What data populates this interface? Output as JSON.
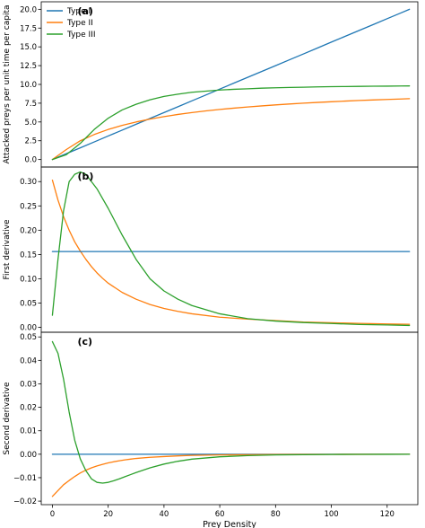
{
  "chart_data": [
    {
      "type": "line",
      "panel_label": "(a)",
      "ylabel": "Attacked preys per unit time per capita",
      "xlabel": "",
      "xlim": [
        -4,
        131
      ],
      "ylim": [
        -1,
        21
      ],
      "yticks": [
        "0.0",
        "2.5",
        "5.0",
        "7.5",
        "10.0",
        "12.5",
        "15.0",
        "17.5",
        "20.0"
      ],
      "ytick_values": [
        0,
        2.5,
        5,
        7.5,
        10,
        12.5,
        15,
        17.5,
        20
      ],
      "xticks": [],
      "x": [
        0,
        5,
        10,
        15,
        20,
        25,
        30,
        35,
        40,
        45,
        50,
        55,
        60,
        65,
        70,
        75,
        80,
        85,
        90,
        95,
        100,
        105,
        110,
        115,
        120,
        125,
        128
      ],
      "series": [
        {
          "name": "Type I",
          "color": "#1f77b4",
          "values": [
            0,
            0.78,
            1.56,
            2.34,
            3.13,
            3.91,
            4.69,
            5.47,
            6.25,
            7.03,
            7.81,
            8.59,
            9.38,
            10.16,
            10.94,
            11.72,
            12.5,
            13.28,
            14.06,
            14.84,
            15.63,
            16.41,
            17.19,
            17.97,
            18.75,
            19.53,
            20.0
          ]
        },
        {
          "name": "Type II",
          "color": "#ff7f0e",
          "values": [
            0,
            1.33,
            2.5,
            3.33,
            4.0,
            4.55,
            5.0,
            5.38,
            5.71,
            6.0,
            6.25,
            6.47,
            6.67,
            6.84,
            7.0,
            7.14,
            7.27,
            7.39,
            7.5,
            7.6,
            7.69,
            7.78,
            7.86,
            7.93,
            8.0,
            8.06,
            8.1
          ]
        },
        {
          "name": "Type III",
          "color": "#2ca02c",
          "values": [
            0,
            0.65,
            2.15,
            4.0,
            5.5,
            6.6,
            7.35,
            7.95,
            8.4,
            8.7,
            8.95,
            9.1,
            9.25,
            9.35,
            9.42,
            9.5,
            9.55,
            9.6,
            9.63,
            9.67,
            9.7,
            9.72,
            9.74,
            9.76,
            9.77,
            9.79,
            9.8
          ]
        }
      ],
      "legend": "top-left",
      "grid": false
    },
    {
      "type": "line",
      "panel_label": "(b)",
      "ylabel": "First derivative",
      "xlabel": "",
      "xlim": [
        -4,
        131
      ],
      "ylim": [
        -0.01,
        0.33
      ],
      "yticks": [
        "0.00",
        "0.05",
        "0.10",
        "0.15",
        "0.20",
        "0.25",
        "0.30"
      ],
      "ytick_values": [
        0,
        0.05,
        0.1,
        0.15,
        0.2,
        0.25,
        0.3
      ],
      "xticks": [],
      "x": [
        0,
        2,
        4,
        6,
        8,
        10,
        12,
        14,
        16,
        18,
        20,
        25,
        30,
        35,
        40,
        45,
        50,
        60,
        70,
        80,
        90,
        100,
        110,
        120,
        128
      ],
      "series": [
        {
          "name": "Type II",
          "color": "#ff7f0e",
          "values": [
            0.303,
            0.262,
            0.228,
            0.2,
            0.176,
            0.157,
            0.14,
            0.125,
            0.112,
            0.101,
            0.091,
            0.072,
            0.058,
            0.047,
            0.039,
            0.033,
            0.028,
            0.021,
            0.017,
            0.014,
            0.011,
            0.0095,
            0.0082,
            0.0071,
            0.0064
          ]
        },
        {
          "name": "Type I",
          "color": "#1f77b4",
          "values": [
            0.156,
            0.156,
            0.156,
            0.156,
            0.156,
            0.156,
            0.156,
            0.156,
            0.156,
            0.156,
            0.156,
            0.156,
            0.156,
            0.156,
            0.156,
            0.156,
            0.156,
            0.156,
            0.156,
            0.156,
            0.156,
            0.156,
            0.156,
            0.156,
            0.156
          ]
        },
        {
          "name": "Type III",
          "color": "#2ca02c",
          "values": [
            0.025,
            0.14,
            0.24,
            0.3,
            0.315,
            0.32,
            0.315,
            0.3,
            0.285,
            0.265,
            0.245,
            0.19,
            0.14,
            0.1,
            0.075,
            0.058,
            0.045,
            0.028,
            0.018,
            0.013,
            0.01,
            0.008,
            0.006,
            0.005,
            0.004
          ]
        }
      ],
      "grid": false
    },
    {
      "type": "line",
      "panel_label": "(c)",
      "ylabel": "Second derivative",
      "xlabel": "Prey Density",
      "xlim": [
        -4,
        131
      ],
      "ylim": [
        -0.0215,
        0.052
      ],
      "yticks": [
        "−0.02",
        "−0.01",
        "0.00",
        "0.01",
        "0.02",
        "0.03",
        "0.04",
        "0.05"
      ],
      "ytick_values": [
        -0.02,
        -0.01,
        0,
        0.01,
        0.02,
        0.03,
        0.04,
        0.05
      ],
      "xticks": [
        "0",
        "20",
        "40",
        "60",
        "80",
        "100",
        "120"
      ],
      "xtick_values": [
        0,
        20,
        40,
        60,
        80,
        100,
        120
      ],
      "x": [
        0,
        2,
        4,
        6,
        8,
        10,
        12,
        14,
        16,
        18,
        20,
        22,
        24,
        26,
        28,
        30,
        35,
        40,
        45,
        50,
        60,
        70,
        80,
        90,
        100,
        110,
        120,
        128
      ],
      "series": [
        {
          "name": "Type I",
          "color": "#1f77b4",
          "values": [
            0,
            0,
            0,
            0,
            0,
            0,
            0,
            0,
            0,
            0,
            0,
            0,
            0,
            0,
            0,
            0,
            0,
            0,
            0,
            0,
            0,
            0,
            0,
            0,
            0,
            0,
            0,
            0
          ]
        },
        {
          "name": "Type II",
          "color": "#ff7f0e",
          "values": [
            -0.018,
            -0.0155,
            -0.013,
            -0.0112,
            -0.0095,
            -0.008,
            -0.0068,
            -0.0058,
            -0.005,
            -0.0043,
            -0.0037,
            -0.0032,
            -0.0028,
            -0.0024,
            -0.0021,
            -0.0018,
            -0.0013,
            -0.001,
            -0.0007,
            -0.0005,
            -0.0003,
            -0.0002,
            -0.0001,
            -8e-05,
            -5e-05,
            -3e-05,
            -2e-05,
            -1e-05
          ]
        },
        {
          "name": "Type III",
          "color": "#2ca02c",
          "values": [
            0.048,
            0.043,
            0.032,
            0.018,
            0.006,
            -0.002,
            -0.007,
            -0.0105,
            -0.012,
            -0.0123,
            -0.012,
            -0.0113,
            -0.0105,
            -0.0096,
            -0.0087,
            -0.0078,
            -0.0058,
            -0.0042,
            -0.003,
            -0.0021,
            -0.0011,
            -0.0006,
            -0.0003,
            -0.0002,
            -0.0001,
            -5e-05,
            -3e-05,
            -2e-05
          ]
        }
      ],
      "grid": false
    }
  ]
}
